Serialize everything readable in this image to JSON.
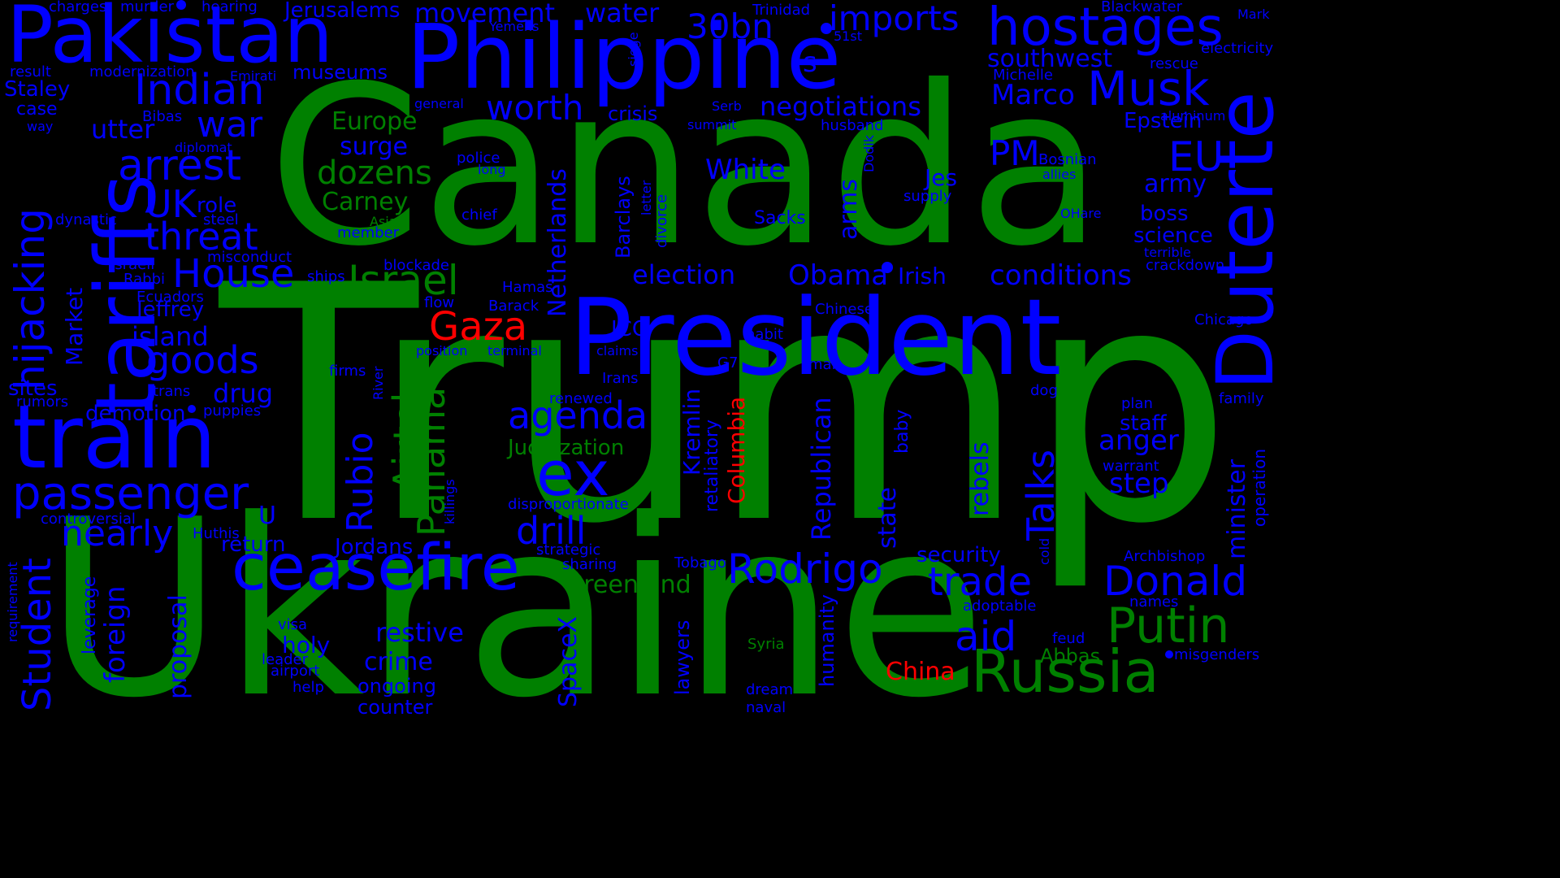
{
  "wordcloud": {
    "background": "#000000",
    "colors": {
      "green": "#008000",
      "blue": "#0000ff",
      "red": "#ff0000"
    },
    "words": {
      "trump": "Trump",
      "ukraine": "Ukraine",
      "canada": "Canada",
      "president": "President",
      "philippine": "Philippine",
      "pakistan": "Pakistan",
      "tariffs": "tariffs",
      "train": "train",
      "duterte": "Duterte",
      "hostages": "hostages",
      "russia": "Russia",
      "putin": "Putin",
      "ceasefire": "ceasefire",
      "passenger": "passenger",
      "hijacking": "hijacking",
      "indian": "Indian",
      "musk": "Musk",
      "gaza": "Gaza",
      "ex": "ex",
      "rodrigo": "Rodrigo",
      "donald": "Donald",
      "trade": "trade",
      "student": "Student",
      "israel": "Israel",
      "house": "House",
      "goods": "goods",
      "arrest": "arrest",
      "threat": "threat",
      "nearly": "nearly",
      "agenda": "agenda",
      "drill": "drill",
      "airtel": "Airtel",
      "panama": "Panama",
      "rubio": "Rubio",
      "talks": "Talks",
      "aid": "aid",
      "imports": "imports",
      "30bn": "30bn",
      "movement": "movement",
      "water": "water",
      "jerusalems": "Jerusalems",
      "southwest": "southwest",
      "marco": "Marco",
      "negotiations": "negotiations",
      "worth": "worth",
      "war": "war",
      "eu": "EU",
      "pm": "PM",
      "army": "army",
      "boss": "boss",
      "science": "science",
      "white": "White",
      "dozens": "dozens",
      "europe": "Europe",
      "surge": "surge",
      "carney": "Carney",
      "uk": "UK",
      "role": "role",
      "election": "election",
      "obama": "Obama",
      "irish": "Irish",
      "conditions": "conditions",
      "netherlands": "Netherlands",
      "barclays": "Barclays",
      "kremlin": "Kremlin",
      "columbia": "Columbia",
      "republican": "Republican",
      "state": "state",
      "rebels": "rebels",
      "anger": "anger",
      "step": "step",
      "staff": "staff",
      "minister": "minister",
      "judaization": "Judaization",
      "greenland": "Greenland",
      "spacex": "SpaceX",
      "restive": "restive",
      "crime": "crime",
      "ongoing": "ongoing",
      "counter": "counter",
      "jordans": "Jordans",
      "return": "return",
      "proposal": "proposal",
      "foreign": "foreign",
      "holy": "holy",
      "china": "China",
      "abbas": "Abbas",
      "security": "security",
      "archbishop": "Archbishop",
      "humanity": "humanity",
      "lawyers": "lawyers",
      "market": "Market",
      "island": "island",
      "jeffrey": "Jeffrey",
      "drug": "drug",
      "demotion": "demotion",
      "sites": "sites",
      "rumors": "rumors",
      "utter": "utter",
      "case": "case",
      "staley": "Staley",
      "epstein": "Epstein",
      "crisis": "crisis",
      "sacks": "Sacks",
      "arms": "arms",
      "jes": "Jes",
      "icc": "ICC",
      "leverage": "leverage",
      "disproportionate": "disproportionate",
      "retaliatory": "retaliatory",
      "baby": "baby",
      "chicago": "Chicago",
      "operation": "operation",
      "plan": "plan",
      "family": "family",
      "warrant": "warrant",
      "feud": "feud",
      "misgenders": "misgenders",
      "names": "names",
      "adoptable": "adoptable",
      "cold": "cold",
      "syria": "Syria",
      "dream": "dream",
      "naval": "naval",
      "tobago": "Tobago",
      "sharing": "sharing",
      "strategic": "strategic",
      "visa": "visa",
      "leader": "leader",
      "airport": "airport",
      "help": "help",
      "requirement": "requirement",
      "controversial": "controversial",
      "huthis": "Huthis",
      "puppies": "puppies",
      "trans": "trans",
      "firms": "firms",
      "river": "River",
      "killings": "killings",
      "renewed": "renewed",
      "irans": "Irans",
      "g7": "G7",
      "man": "man",
      "habit": "habit",
      "chinese": "Chinese",
      "dog": "dog",
      "barack": "Barack",
      "hamas": "Hamas",
      "flow": "flow",
      "position": "position",
      "terminal": "terminal",
      "claims": "claims",
      "blockade": "blockade",
      "ships": "ships",
      "misconduct": "misconduct",
      "israeli": "Israeli",
      "rabbi": "Rabbi",
      "ecuadors": "Ecuadors",
      "dynastic": "dynastic",
      "steel": "steel",
      "asia": "Asia",
      "member": "member",
      "chief": "chief",
      "police": "police",
      "long": "long",
      "general": "general",
      "diplomat": "diplomat",
      "bibas": "Bibas",
      "way": "way",
      "result": "result",
      "modernization": "modernization",
      "emirati": "Emirati",
      "museums": "museums",
      "charges": "charges",
      "murder": "murder",
      "hearing": "hearing",
      "yemens": "Yemens",
      "trinidad": "Trinidad",
      "siege": "siege",
      "51st": "51st",
      "blackwater": "Blackwater",
      "mark": "Mark",
      "electricity": "electricity",
      "rescue": "rescue",
      "michelle": "Michelle",
      "aluminum": "aluminum",
      "husband": "husband",
      "summit": "summit",
      "serb": "Serb",
      "bosnian": "Bosnian",
      "dodik": "Dodik",
      "allies": "allies",
      "supply": "supply",
      "letter": "letter",
      "divorce": "divorce",
      "ohare": "OHare",
      "terrible": "terrible",
      "crackdown": "crackdown",
      "s": "s",
      "u": "U"
    }
  }
}
